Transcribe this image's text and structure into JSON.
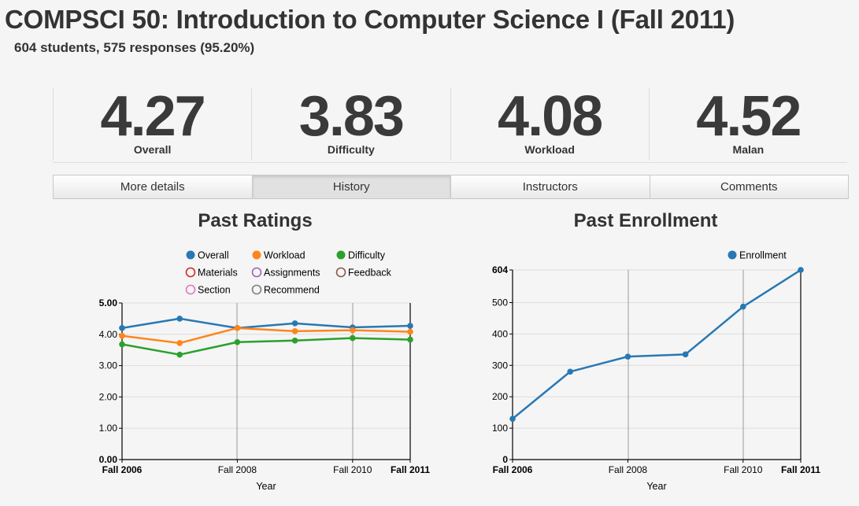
{
  "page": {
    "title": "COMPSCI 50: Introduction to Computer Science I (Fall 2011)",
    "summary": "604 students, 575 responses (95.20%)"
  },
  "stats": [
    {
      "value": "4.27",
      "label": "Overall"
    },
    {
      "value": "3.83",
      "label": "Difficulty"
    },
    {
      "value": "4.08",
      "label": "Workload"
    },
    {
      "value": "4.52",
      "label": "Malan"
    }
  ],
  "tabs": [
    {
      "label": "More details",
      "active": false
    },
    {
      "label": "History",
      "active": true
    },
    {
      "label": "Instructors",
      "active": false
    },
    {
      "label": "Comments",
      "active": false
    }
  ],
  "chart_data": [
    {
      "type": "line",
      "title": "Past Ratings",
      "xlabel": "Year",
      "ylabel": "",
      "ylim": [
        0,
        5
      ],
      "y_ticks": [
        "0.00",
        "1.00",
        "2.00",
        "3.00",
        "4.00",
        "5.00"
      ],
      "x_ticks": [
        {
          "label": "Fall 2006",
          "index": 0,
          "bold": true
        },
        {
          "label": "Fall 2008",
          "index": 2,
          "bold": false
        },
        {
          "label": "Fall 2010",
          "index": 4,
          "bold": false
        },
        {
          "label": "Fall 2011",
          "index": 5,
          "bold": true
        }
      ],
      "grid": true,
      "legend_position": "top",
      "legend": [
        {
          "name": "Overall",
          "color": "#2878b4",
          "filled": true
        },
        {
          "name": "Workload",
          "color": "#ff851b",
          "filled": true
        },
        {
          "name": "Difficulty",
          "color": "#2ca02c",
          "filled": true
        },
        {
          "name": "Materials",
          "color": "#d62728",
          "filled": false
        },
        {
          "name": "Assignments",
          "color": "#9467bd",
          "filled": false
        },
        {
          "name": "Feedback",
          "color": "#8c564b",
          "filled": false
        },
        {
          "name": "Section",
          "color": "#e377c2",
          "filled": false
        },
        {
          "name": "Recommend",
          "color": "#7f7f7f",
          "filled": false
        }
      ],
      "series": [
        {
          "name": "Overall",
          "color": "#2878b4",
          "values": [
            4.2,
            4.5,
            4.2,
            4.35,
            4.22,
            4.27
          ]
        },
        {
          "name": "Workload",
          "color": "#ff851b",
          "values": [
            3.95,
            3.72,
            4.2,
            4.1,
            4.13,
            4.08
          ]
        },
        {
          "name": "Difficulty",
          "color": "#2ca02c",
          "values": [
            3.68,
            3.35,
            3.75,
            3.8,
            3.88,
            3.83
          ]
        }
      ]
    },
    {
      "type": "line",
      "title": "Past Enrollment",
      "xlabel": "Year",
      "ylabel": "",
      "ylim": [
        0,
        604
      ],
      "y_ticks": [
        "0",
        "100",
        "200",
        "300",
        "400",
        "500",
        "604"
      ],
      "x_ticks": [
        {
          "label": "Fall 2006",
          "index": 0,
          "bold": true
        },
        {
          "label": "Fall 2008",
          "index": 2,
          "bold": false
        },
        {
          "label": "Fall 2010",
          "index": 4,
          "bold": false
        },
        {
          "label": "Fall 2011",
          "index": 5,
          "bold": true
        }
      ],
      "grid": true,
      "legend_position": "top-right",
      "legend": [
        {
          "name": "Enrollment",
          "color": "#2878b4",
          "filled": true
        }
      ],
      "series": [
        {
          "name": "Enrollment",
          "color": "#2878b4",
          "values": [
            130,
            280,
            328,
            335,
            487,
            604
          ]
        }
      ]
    }
  ]
}
